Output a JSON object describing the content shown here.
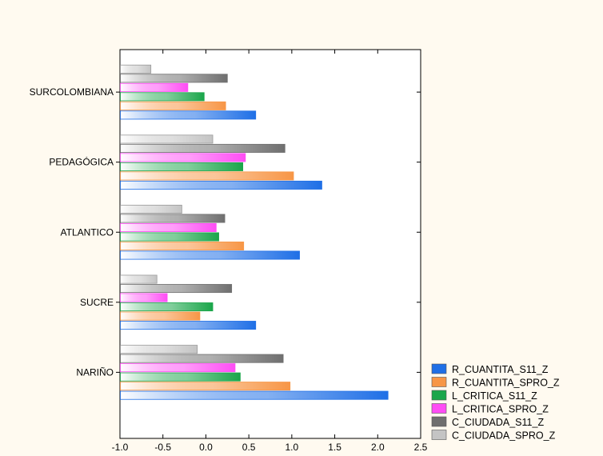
{
  "chart_data": {
    "type": "bar",
    "orientation": "horizontal",
    "categories": [
      "SURCOLOMBIANA",
      "PEDAGÓGICA",
      "ATLANTICO",
      "SUCRE",
      "NARIÑO"
    ],
    "series": [
      {
        "name": "R_CUANTITA_S11_Z",
        "color": "#1f6fe6",
        "values": [
          0.58,
          1.35,
          1.09,
          0.58,
          2.12
        ]
      },
      {
        "name": "R_CUANTITA_SPRO_Z",
        "color": "#f79646",
        "values": [
          0.23,
          1.02,
          0.44,
          -0.07,
          0.98
        ]
      },
      {
        "name": "L_CRITICA_S11_Z",
        "color": "#1aa64a",
        "values": [
          -0.02,
          0.43,
          0.15,
          0.08,
          0.4
        ]
      },
      {
        "name": "L_CRITICA_SPRO_Z",
        "color": "#ff4df5",
        "values": [
          -0.21,
          0.46,
          0.12,
          -0.45,
          0.34
        ]
      },
      {
        "name": "C_CIUDADA_S11_Z",
        "color": "#6f6f6f",
        "values": [
          0.25,
          0.92,
          0.22,
          0.3,
          0.9
        ]
      },
      {
        "name": "C_CIUDADA_SPRO_Z",
        "color": "#c4c4c4",
        "values": [
          -0.64,
          0.08,
          -0.28,
          -0.57,
          -0.1
        ]
      }
    ],
    "xlim": [
      -1.0,
      2.5
    ],
    "xticks": [
      "-1.0",
      "-0.5",
      "0.0",
      "0.5",
      "1.0",
      "1.5",
      "2.0",
      "2.5"
    ],
    "grid": false,
    "legend_position": "bottom-right"
  }
}
